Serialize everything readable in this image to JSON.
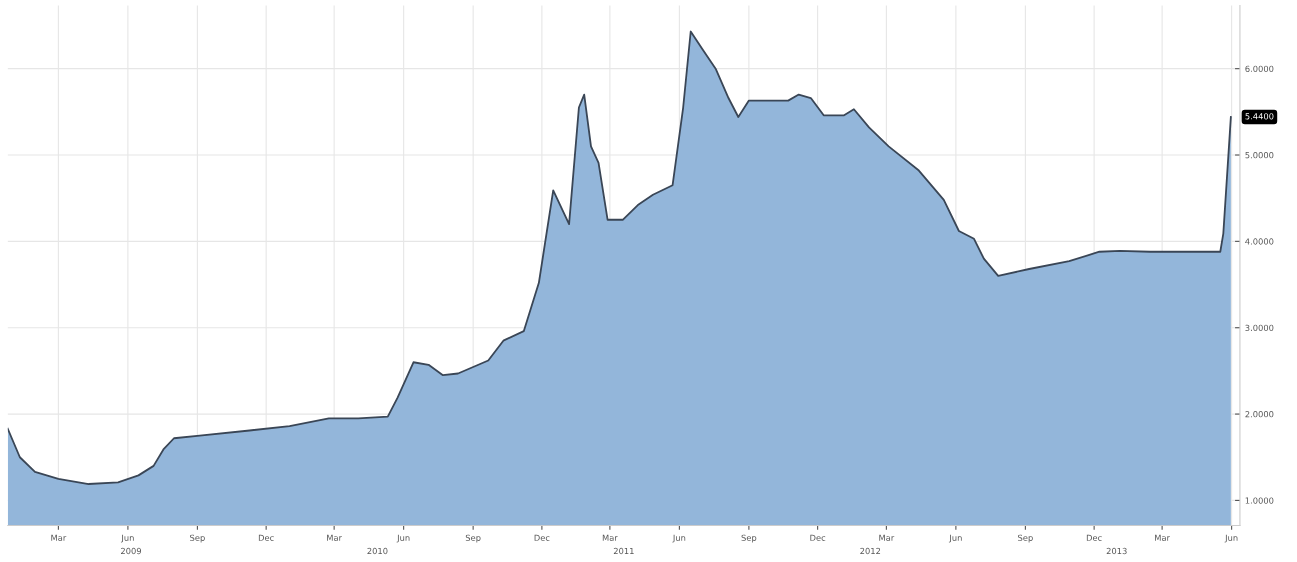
{
  "chart_data": {
    "type": "area",
    "x": [
      "2008-12-24",
      "2009-01-09",
      "2009-01-29",
      "2009-03-01",
      "2009-04-10",
      "2009-05-19",
      "2009-06-15",
      "2009-07-05",
      "2009-07-18",
      "2009-08-01",
      "2009-09-04",
      "2009-11-09",
      "2010-01-01",
      "2010-02-22",
      "2010-04-02",
      "2010-05-11",
      "2010-05-24",
      "2010-06-14",
      "2010-07-04",
      "2010-07-23",
      "2010-08-12",
      "2010-09-21",
      "2010-10-11",
      "2010-11-07",
      "2010-11-27",
      "2010-12-16",
      "2011-01-06",
      "2011-01-19",
      "2011-01-26",
      "2011-02-04",
      "2011-02-14",
      "2011-02-26",
      "2011-03-18",
      "2011-04-07",
      "2011-04-27",
      "2011-05-23",
      "2011-06-06",
      "2011-06-16",
      "2011-07-02",
      "2011-07-19",
      "2011-08-05",
      "2011-08-18",
      "2011-09-01",
      "2011-10-23",
      "2011-11-06",
      "2011-11-22",
      "2011-12-09",
      "2012-01-05",
      "2012-01-18",
      "2012-02-07",
      "2012-03-04",
      "2012-04-13",
      "2012-05-16",
      "2012-06-05",
      "2012-06-25",
      "2012-07-08",
      "2012-07-27",
      "2012-09-06",
      "2012-10-29",
      "2012-12-08",
      "2013-01-04",
      "2013-02-13",
      "2013-05-17",
      "2013-05-21",
      "2013-05-31"
    ],
    "series": [
      {
        "color": "#93b6da",
        "values": [
          1.83,
          1.5,
          1.33,
          1.25,
          1.19,
          1.21,
          1.29,
          1.4,
          1.59,
          1.72,
          1.75,
          1.81,
          1.86,
          1.95,
          1.95,
          1.97,
          2.19,
          2.6,
          2.57,
          2.45,
          2.47,
          2.62,
          2.85,
          2.96,
          3.52,
          4.59,
          4.2,
          5.55,
          5.7,
          5.1,
          4.91,
          4.25,
          4.25,
          4.42,
          4.54,
          4.65,
          5.55,
          6.43,
          6.22,
          6.0,
          5.66,
          5.44,
          5.63,
          5.63,
          5.7,
          5.66,
          5.46,
          5.46,
          5.53,
          5.32,
          5.1,
          4.82,
          4.48,
          4.12,
          4.03,
          3.8,
          3.6,
          3.68,
          3.77,
          3.88,
          3.89,
          3.88,
          3.88,
          4.09,
          5.44
        ]
      }
    ],
    "xlim": [
      "2008-12-24",
      "2013-06-12"
    ],
    "xticks": [
      {
        "value": "2009-03-01",
        "label": "Mar"
      },
      {
        "value": "2009-06-01",
        "label": "Jun"
      },
      {
        "value": "2009-09-01",
        "label": "Sep"
      },
      {
        "value": "2009-12-01",
        "label": "Dec"
      },
      {
        "value": "2010-03-01",
        "label": "Mar"
      },
      {
        "value": "2010-06-01",
        "label": "Jun"
      },
      {
        "value": "2010-09-01",
        "label": "Sep"
      },
      {
        "value": "2010-12-01",
        "label": "Dec"
      },
      {
        "value": "2011-03-01",
        "label": "Mar"
      },
      {
        "value": "2011-06-01",
        "label": "Jun"
      },
      {
        "value": "2011-09-01",
        "label": "Sep"
      },
      {
        "value": "2011-12-01",
        "label": "Dec"
      },
      {
        "value": "2012-03-01",
        "label": "Mar"
      },
      {
        "value": "2012-06-01",
        "label": "Jun"
      },
      {
        "value": "2012-09-01",
        "label": "Sep"
      },
      {
        "value": "2012-12-01",
        "label": "Dec"
      },
      {
        "value": "2013-03-01",
        "label": "Mar"
      },
      {
        "value": "2013-06-01",
        "label": "Jun"
      }
    ],
    "ylim": [
      0.71,
      6.73
    ],
    "yticks": [
      {
        "value": 1,
        "label": "1.0000"
      },
      {
        "value": 2,
        "label": "2.0000"
      },
      {
        "value": 3,
        "label": "3.0000"
      },
      {
        "value": 4,
        "label": "4.0000"
      },
      {
        "value": 5,
        "label": "5.0000"
      },
      {
        "value": 6,
        "label": "6.0000"
      }
    ],
    "annotations": [
      {
        "text": "5.4400",
        "x": "2013-05-31",
        "y": 5.44
      },
      "2009",
      "2010",
      "2011",
      "2012",
      "2013"
    ],
    "grid": true,
    "legend": false
  }
}
